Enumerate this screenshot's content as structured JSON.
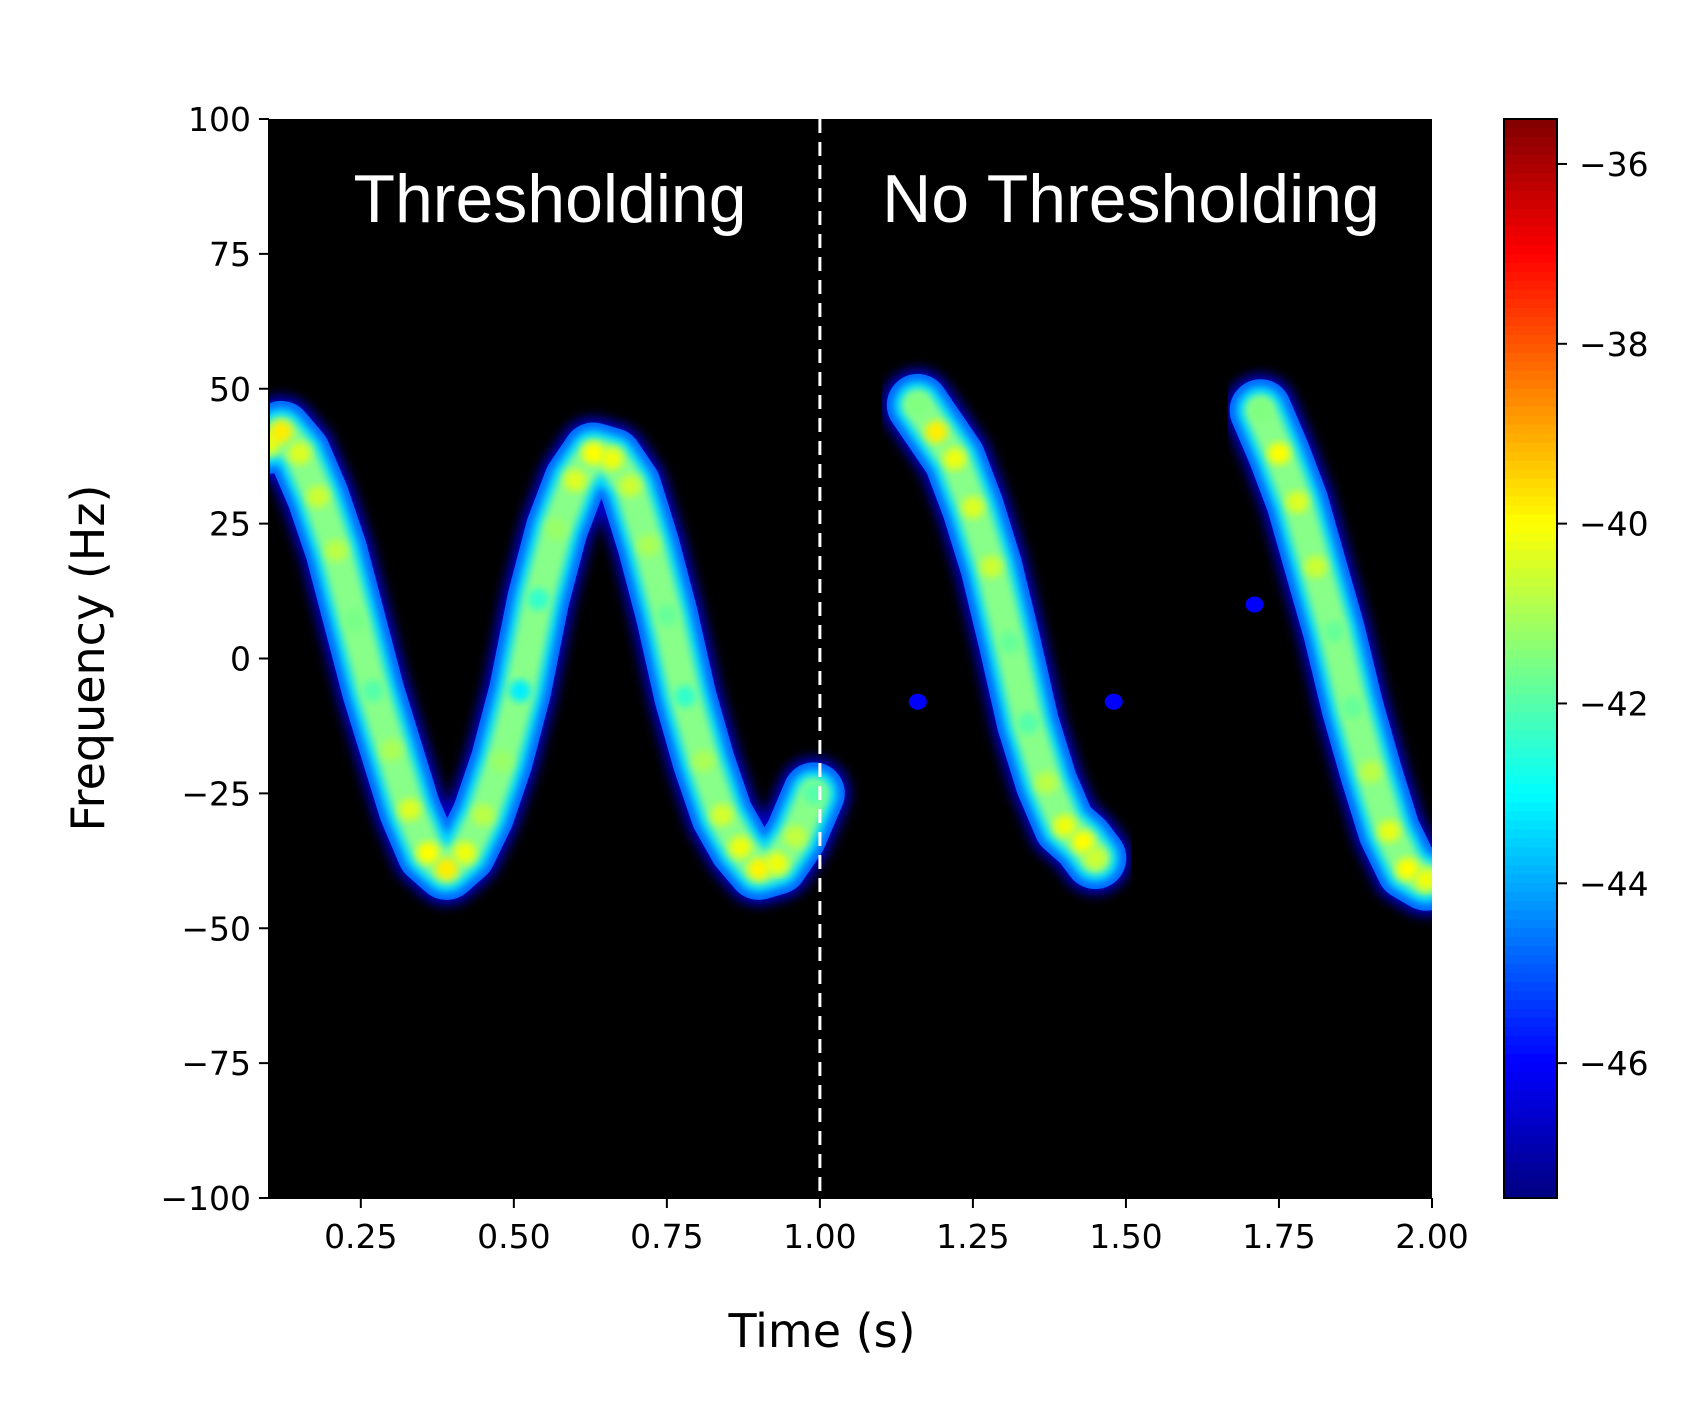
{
  "chart_data": {
    "type": "heatmap",
    "title": "",
    "xlabel": "Time (s)",
    "ylabel": "Frequency (Hz)",
    "xlim": [
      0.1,
      2.0
    ],
    "ylim": [
      -100,
      100
    ],
    "xticks": [
      0.25,
      0.5,
      0.75,
      1.0,
      1.25,
      1.5,
      1.75,
      2.0
    ],
    "xtick_labels": [
      "0.25",
      "0.50",
      "0.75",
      "1.00",
      "1.25",
      "1.50",
      "1.75",
      "2.00"
    ],
    "yticks": [
      100,
      75,
      50,
      25,
      0,
      -25,
      -50,
      -75,
      -100
    ],
    "ytick_labels": [
      "100",
      "75",
      "50",
      "25",
      "0",
      "−25",
      "−50",
      "−75",
      "−100"
    ],
    "background_color": "#000000",
    "colormap": "jet",
    "colorbar": {
      "range": [
        -47.5,
        -35.5
      ],
      "ticks": [
        -36,
        -38,
        -40,
        -42,
        -44,
        -46
      ],
      "tick_labels": [
        "−36",
        "−38",
        "−40",
        "−42",
        "−44",
        "−46"
      ]
    },
    "divider": {
      "x": 1.0,
      "style": "dashed",
      "color": "#ffffff"
    },
    "annotations": [
      {
        "text": "Thresholding",
        "x": 0.55,
        "y": 85
      },
      {
        "text": "No Thresholding",
        "x": 1.5,
        "y": 85
      }
    ],
    "series": [
      {
        "name": "Thresholding",
        "description": "continuous sinusoidal frequency trace",
        "points": [
          {
            "t": 0.1,
            "f": 40,
            "db": -40.3
          },
          {
            "t": 0.12,
            "f": 42,
            "db": -39.8
          },
          {
            "t": 0.15,
            "f": 38,
            "db": -40.4
          },
          {
            "t": 0.18,
            "f": 30,
            "db": -40.6
          },
          {
            "t": 0.21,
            "f": 20,
            "db": -40.8
          },
          {
            "t": 0.24,
            "f": 7,
            "db": -41.6
          },
          {
            "t": 0.27,
            "f": -6,
            "db": -42.0
          },
          {
            "t": 0.3,
            "f": -17,
            "db": -41.0
          },
          {
            "t": 0.33,
            "f": -28,
            "db": -40.4
          },
          {
            "t": 0.36,
            "f": -36,
            "db": -40.0
          },
          {
            "t": 0.39,
            "f": -39,
            "db": -39.8
          },
          {
            "t": 0.42,
            "f": -36,
            "db": -40.2
          },
          {
            "t": 0.45,
            "f": -29,
            "db": -40.8
          },
          {
            "t": 0.48,
            "f": -19,
            "db": -41.2
          },
          {
            "t": 0.51,
            "f": -6,
            "db": -43.2
          },
          {
            "t": 0.54,
            "f": 11,
            "db": -42.4
          },
          {
            "t": 0.57,
            "f": 24,
            "db": -41.2
          },
          {
            "t": 0.6,
            "f": 33,
            "db": -40.4
          },
          {
            "t": 0.63,
            "f": 38,
            "db": -40.0
          },
          {
            "t": 0.66,
            "f": 37,
            "db": -40.2
          },
          {
            "t": 0.69,
            "f": 32,
            "db": -40.6
          },
          {
            "t": 0.72,
            "f": 21,
            "db": -41.0
          },
          {
            "t": 0.75,
            "f": 8,
            "db": -41.8
          },
          {
            "t": 0.78,
            "f": -7,
            "db": -42.4
          },
          {
            "t": 0.81,
            "f": -19,
            "db": -41.0
          },
          {
            "t": 0.84,
            "f": -29,
            "db": -40.5
          },
          {
            "t": 0.87,
            "f": -35,
            "db": -40.2
          },
          {
            "t": 0.9,
            "f": -39,
            "db": -39.9
          },
          {
            "t": 0.93,
            "f": -38,
            "db": -40.2
          },
          {
            "t": 0.96,
            "f": -33,
            "db": -40.7
          },
          {
            "t": 0.99,
            "f": -25,
            "db": -42.0
          }
        ]
      },
      {
        "name": "No Thresholding",
        "description": "two descending frequency sweeps",
        "segments": [
          [
            {
              "t": 1.16,
              "f": 47,
              "db": -41.5
            },
            {
              "t": 1.19,
              "f": 42,
              "db": -39.8
            },
            {
              "t": 1.22,
              "f": 37,
              "db": -40.2
            },
            {
              "t": 1.25,
              "f": 28,
              "db": -40.4
            },
            {
              "t": 1.28,
              "f": 17,
              "db": -40.6
            },
            {
              "t": 1.31,
              "f": 3,
              "db": -41.8
            },
            {
              "t": 1.34,
              "f": -12,
              "db": -42.0
            },
            {
              "t": 1.37,
              "f": -23,
              "db": -40.8
            },
            {
              "t": 1.4,
              "f": -31,
              "db": -40.2
            },
            {
              "t": 1.43,
              "f": -34,
              "db": -40.0
            },
            {
              "t": 1.45,
              "f": -37,
              "db": -40.6
            }
          ],
          [
            {
              "t": 1.72,
              "f": 46,
              "db": -41.5
            },
            {
              "t": 1.75,
              "f": 38,
              "db": -40.0
            },
            {
              "t": 1.78,
              "f": 29,
              "db": -40.4
            },
            {
              "t": 1.81,
              "f": 17,
              "db": -40.6
            },
            {
              "t": 1.84,
              "f": 5,
              "db": -41.8
            },
            {
              "t": 1.87,
              "f": -9,
              "db": -41.8
            },
            {
              "t": 1.9,
              "f": -21,
              "db": -40.8
            },
            {
              "t": 1.93,
              "f": -32,
              "db": -40.3
            },
            {
              "t": 1.96,
              "f": -39,
              "db": -40.0
            },
            {
              "t": 1.99,
              "f": -41,
              "db": -40.2
            }
          ]
        ],
        "blobs": [
          {
            "t": 1.16,
            "f": -8,
            "db": -46.0
          },
          {
            "t": 1.48,
            "f": -8,
            "db": -46.0
          },
          {
            "t": 1.71,
            "f": 10,
            "db": -46.0
          }
        ]
      }
    ]
  }
}
